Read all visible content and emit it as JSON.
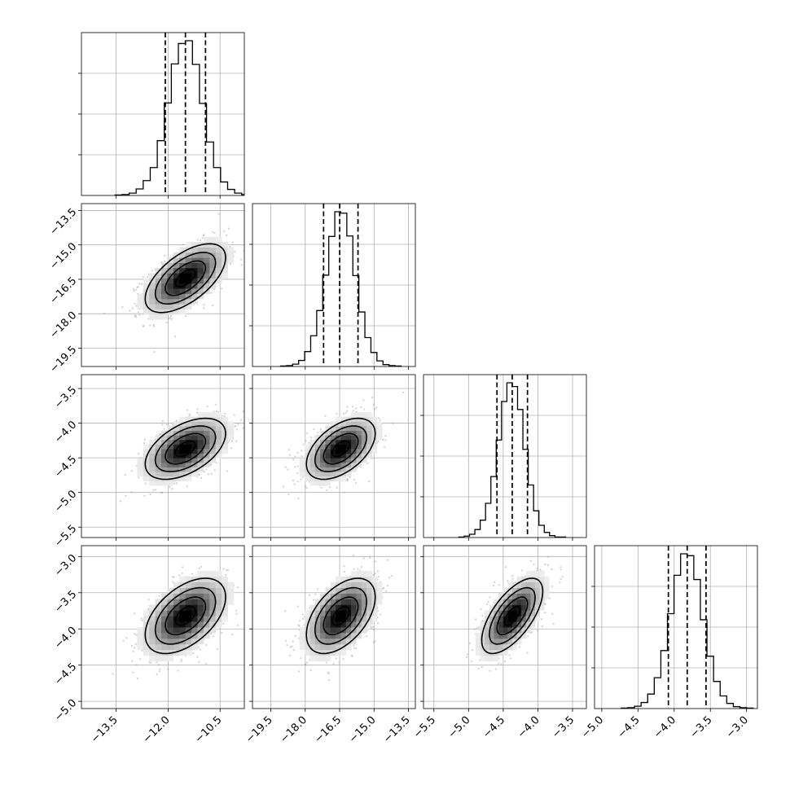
{
  "chart_data": {
    "type": "corner",
    "grid": true,
    "colors": {
      "marks": "#000000",
      "grid": "#b0b0b0",
      "scatter": "#9a9a9a",
      "background": "#ffffff"
    },
    "parameters": [
      {
        "index": 0,
        "range": [
          -14.5,
          -9.8
        ],
        "ticks": [
          -13.5,
          -12.0,
          -10.5
        ],
        "tick_labels": [
          "−13.5",
          "−12.0",
          "−10.5"
        ],
        "mean": -11.5,
        "sd": 0.58
      },
      {
        "index": 1,
        "range": [
          -20.3,
          -13.2
        ],
        "ticks": [
          -19.5,
          -18.0,
          -16.5,
          -15.0,
          -13.5
        ],
        "tick_labels": [
          "−19.5",
          "−18.0",
          "−16.5",
          "−15.0",
          "−13.5"
        ],
        "mean": -16.45,
        "sd": 0.75
      },
      {
        "index": 2,
        "range": [
          -5.65,
          -3.3
        ],
        "ticks": [
          -5.5,
          -5.0,
          -4.5,
          -4.0,
          -3.5
        ],
        "tick_labels": [
          "−5.5",
          "−5.0",
          "−4.5",
          "−4.0",
          "−3.5"
        ],
        "mean": -4.37,
        "sd": 0.22
      },
      {
        "index": 3,
        "range": [
          -5.1,
          -2.85
        ],
        "ticks": [
          -5.0,
          -4.5,
          -4.0,
          -3.5,
          -3.0
        ],
        "tick_labels": [
          "−5.0",
          "−4.5",
          "−4.0",
          "−3.5",
          "−3.0"
        ],
        "mean": -3.82,
        "sd": 0.26
      }
    ],
    "quantiles": [
      [
        -12.08,
        -11.5,
        -10.92
      ],
      [
        -17.2,
        -16.5,
        -15.7
      ],
      [
        -4.59,
        -4.37,
        -4.15
      ],
      [
        -4.08,
        -3.82,
        -3.56
      ]
    ],
    "correlations": [
      [
        1.0,
        0.6,
        0.5,
        0.5
      ],
      [
        0.6,
        1.0,
        0.5,
        0.5
      ],
      [
        0.5,
        0.5,
        1.0,
        0.65
      ],
      [
        0.5,
        0.5,
        0.65,
        1.0
      ]
    ],
    "histograms": [
      {
        "param": 0,
        "bins": 20,
        "counts": [
          1,
          2,
          5,
          14,
          32,
          60,
          118,
          199,
          283,
          327,
          333,
          282,
          198,
          115,
          60,
          29,
          13,
          5,
          2,
          1
        ]
      },
      {
        "param": 1,
        "bins": 20,
        "counts": [
          1,
          2,
          5,
          13,
          32,
          66,
          120,
          196,
          279,
          332,
          329,
          280,
          195,
          117,
          62,
          30,
          12,
          4,
          2,
          1
        ]
      },
      {
        "param": 2,
        "bins": 20,
        "counts": [
          1,
          3,
          7,
          17,
          37,
          73,
          130,
          208,
          290,
          330,
          322,
          273,
          188,
          112,
          57,
          26,
          11,
          4,
          1,
          1
        ]
      },
      {
        "param": 3,
        "bins": 20,
        "counts": [
          1,
          2,
          5,
          13,
          31,
          66,
          124,
          203,
          285,
          331,
          327,
          276,
          190,
          112,
          58,
          27,
          11,
          4,
          2,
          1
        ]
      }
    ],
    "contour_levels_sigma": [
      0.5,
      1.0,
      1.5,
      2.0
    ]
  }
}
